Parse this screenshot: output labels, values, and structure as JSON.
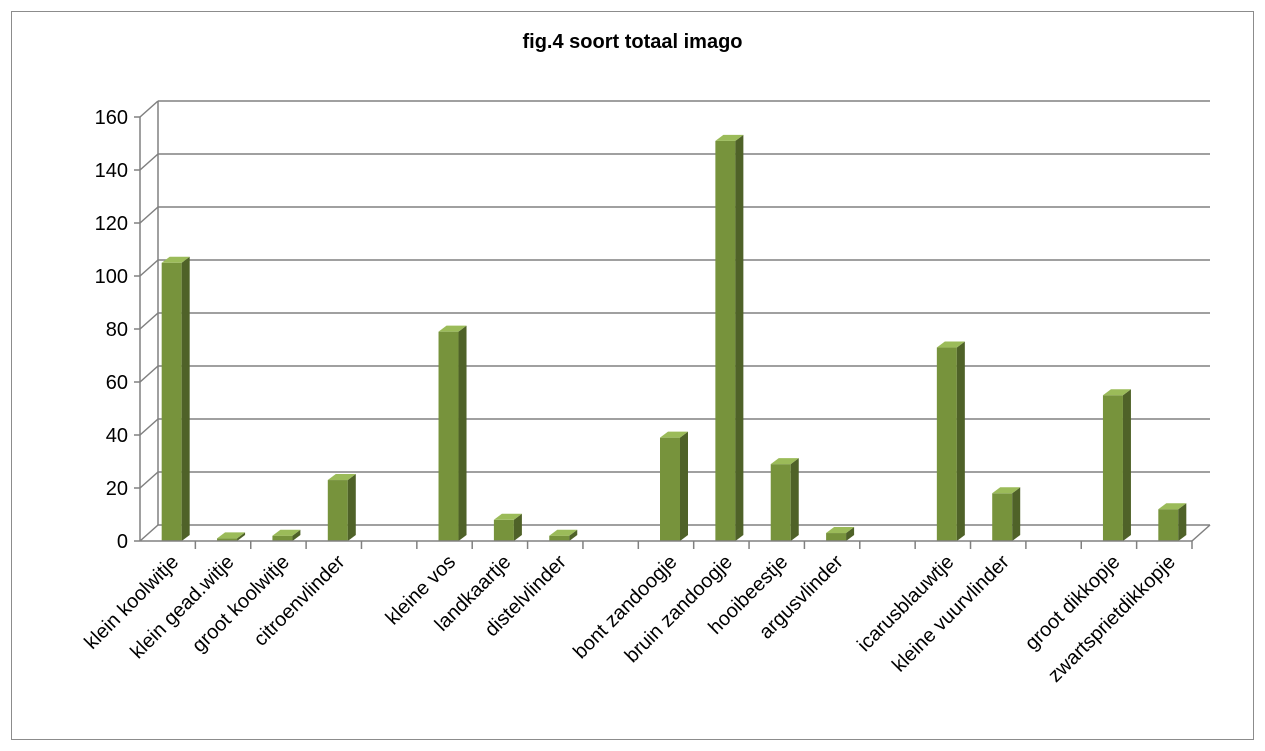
{
  "chart_data": {
    "type": "bar",
    "title": "fig.4 soort totaal imago",
    "xlabel": "",
    "ylabel": "",
    "ylim": [
      0,
      160
    ],
    "yticks": [
      "0",
      "20",
      "40",
      "60",
      "80",
      "100",
      "120",
      "140",
      "160"
    ],
    "grid": true,
    "legend": "none",
    "bar_color": "#77933c",
    "bar_side_color": "#4f6228",
    "bar_top_color": "#9bbb59",
    "categories": [
      "klein koolwitje",
      "klein gead.witje",
      "groot koolwitje",
      "citroenvlinder",
      "",
      "kleine vos",
      "landkaartje",
      "distelvlinder",
      "",
      "bont zandoogje",
      "bruin zandoogje",
      "hooibeestje",
      "argusvlinder",
      "",
      "icarusblauwtje",
      "kleine vuurvlinder",
      "",
      "groot dikkopje",
      "zwartsprietdikkopje"
    ],
    "values": [
      105,
      1,
      2,
      23,
      0,
      79,
      8,
      2,
      0,
      39,
      151,
      29,
      3,
      0,
      73,
      18,
      0,
      55,
      12
    ]
  }
}
